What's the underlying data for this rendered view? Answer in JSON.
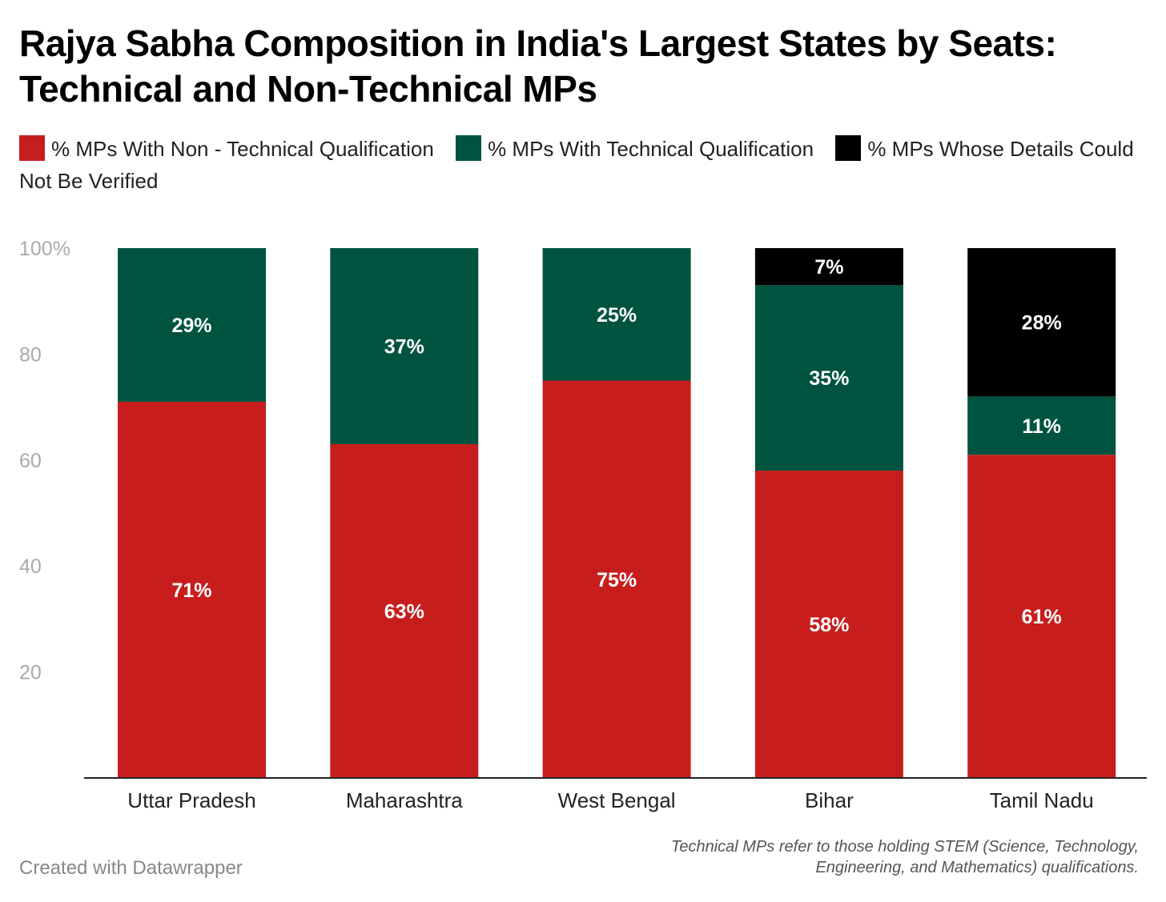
{
  "chart_data": {
    "type": "stacked-bar",
    "title": "Rajya Sabha Composition in India's Largest States by Seats: Technical and Non-Technical MPs",
    "categories": [
      "Uttar Pradesh",
      "Maharashtra",
      "West Bengal",
      "Bihar",
      "Tamil Nadu"
    ],
    "series": [
      {
        "name": "% MPs With Non - Technical Qualification",
        "color": "#c71e1d",
        "values": [
          71,
          63,
          75,
          58,
          61
        ]
      },
      {
        "name": "% MPs With Technical Qualification",
        "color": "#00543f",
        "values": [
          29,
          37,
          25,
          35,
          11
        ]
      },
      {
        "name": "% MPs Whose Details Could Not Be Verified",
        "color": "#000000",
        "values": [
          0,
          0,
          0,
          7,
          28
        ]
      }
    ],
    "y_ticks": [
      "20",
      "40",
      "60",
      "80",
      "100%"
    ],
    "y_tick_values": [
      20,
      40,
      60,
      80,
      100
    ],
    "ylim": [
      0,
      100
    ],
    "legend_position": "top",
    "grid": false
  },
  "footer": {
    "credit": "Created with Datawrapper",
    "note": "Technical MPs refer to those holding STEM (Science, Technology, Engineering, and Mathematics) qualifications."
  }
}
